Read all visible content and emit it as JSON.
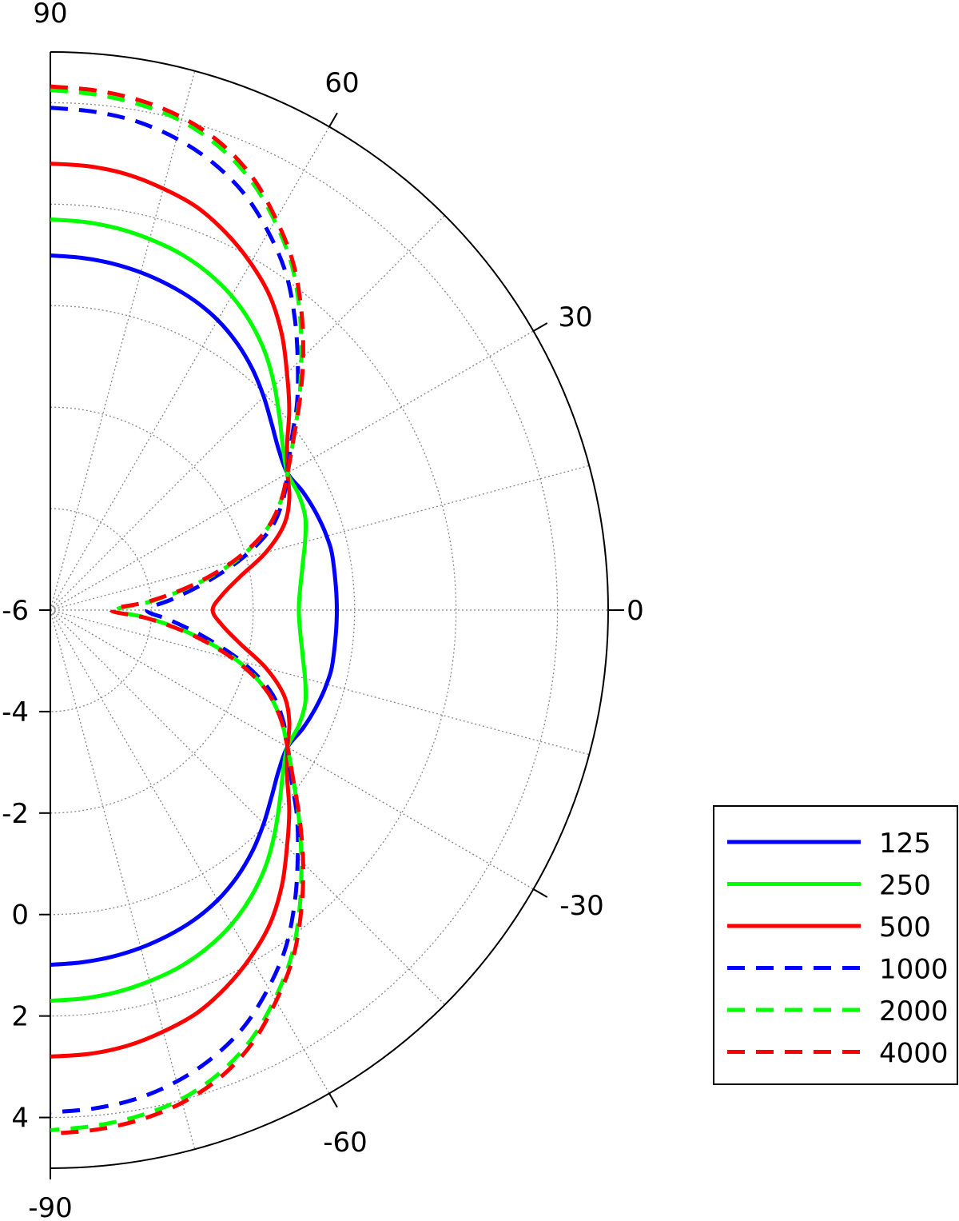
{
  "chart_data": {
    "type": "line",
    "projection": "polar-half",
    "angular_axis": {
      "range": [
        -90,
        90
      ],
      "unit": "degrees",
      "ticks": [
        90,
        60,
        30,
        0,
        -30,
        -60,
        -90
      ],
      "tick_labels": [
        "90",
        "60",
        "30",
        "0",
        "-30",
        "-60",
        "-90"
      ],
      "spokes_every": 15
    },
    "radial_axis": {
      "range": [
        -6,
        5
      ],
      "ticks": [
        -6,
        -4,
        -2,
        0,
        2,
        4
      ],
      "tick_labels": [
        "-6",
        "-4",
        "-2",
        "0",
        "2",
        "4"
      ],
      "grid_rings": [
        -4,
        -2,
        0,
        2,
        4
      ]
    },
    "grid": true,
    "legend_position": "right",
    "series": [
      {
        "name": "125",
        "color": "#0000ff",
        "dash": "solid",
        "theta": [
          0,
          10,
          15,
          20,
          25,
          30,
          35,
          40,
          45,
          50,
          55,
          60,
          65,
          70,
          75,
          80,
          85,
          90
        ],
        "r": [
          -0.35,
          -0.34,
          -0.36,
          -0.42,
          -0.5,
          -0.6,
          -0.5,
          -0.3,
          -0.05,
          0.2,
          0.42,
          0.6,
          0.73,
          0.82,
          0.89,
          0.94,
          0.97,
          0.99
        ]
      },
      {
        "name": "250",
        "color": "#00ff00",
        "dash": "solid",
        "theta": [
          0,
          10,
          15,
          20,
          25,
          30,
          35,
          40,
          45,
          50,
          55,
          60,
          65,
          70,
          75,
          80,
          85,
          90
        ],
        "r": [
          -1.1,
          -0.95,
          -0.8,
          -0.65,
          -0.6,
          -0.6,
          -0.4,
          -0.1,
          0.25,
          0.6,
          0.9,
          1.15,
          1.34,
          1.48,
          1.57,
          1.64,
          1.68,
          1.7
        ]
      },
      {
        "name": "500",
        "color": "#ff0000",
        "dash": "solid",
        "theta": [
          0,
          5,
          10,
          15,
          20,
          25,
          30,
          35,
          40,
          45,
          50,
          55,
          60,
          65,
          70,
          75,
          80,
          85,
          90
        ],
        "r": [
          -2.8,
          -2.6,
          -2.2,
          -1.6,
          -1.1,
          -0.8,
          -0.6,
          -0.3,
          0.15,
          0.6,
          1.1,
          1.55,
          1.9,
          2.2,
          2.45,
          2.6,
          2.72,
          2.78,
          2.8
        ]
      },
      {
        "name": "1000",
        "color": "#0000ff",
        "dash": "dashed",
        "theta": [
          0,
          5,
          10,
          15,
          20,
          25,
          30,
          35,
          40,
          45,
          50,
          55,
          60,
          65,
          70,
          75,
          80,
          85,
          90
        ],
        "r": [
          -4.1,
          -3.6,
          -2.9,
          -2.1,
          -1.4,
          -0.95,
          -0.6,
          -0.2,
          0.35,
          0.9,
          1.5,
          2.1,
          2.6,
          3.05,
          3.38,
          3.62,
          3.78,
          3.86,
          3.9
        ]
      },
      {
        "name": "2000",
        "color": "#00ff00",
        "dash": "dashed",
        "theta": [
          0,
          5,
          10,
          15,
          20,
          25,
          30,
          35,
          40,
          45,
          50,
          55,
          60,
          65,
          70,
          75,
          80,
          85,
          90
        ],
        "r": [
          -4.7,
          -4.0,
          -3.1,
          -2.2,
          -1.5,
          -1.0,
          -0.6,
          -0.15,
          0.4,
          1.0,
          1.65,
          2.3,
          2.85,
          3.35,
          3.72,
          3.98,
          4.12,
          4.2,
          4.25
        ]
      },
      {
        "name": "4000",
        "color": "#ff0000",
        "dash": "dashed",
        "theta": [
          0,
          5,
          10,
          15,
          20,
          25,
          30,
          35,
          40,
          45,
          50,
          55,
          60,
          65,
          70,
          75,
          80,
          85,
          90
        ],
        "r": [
          -4.8,
          -4.05,
          -3.15,
          -2.25,
          -1.5,
          -1.0,
          -0.6,
          -0.15,
          0.42,
          1.05,
          1.7,
          2.35,
          2.9,
          3.42,
          3.8,
          4.05,
          4.2,
          4.28,
          4.32
        ]
      }
    ]
  }
}
